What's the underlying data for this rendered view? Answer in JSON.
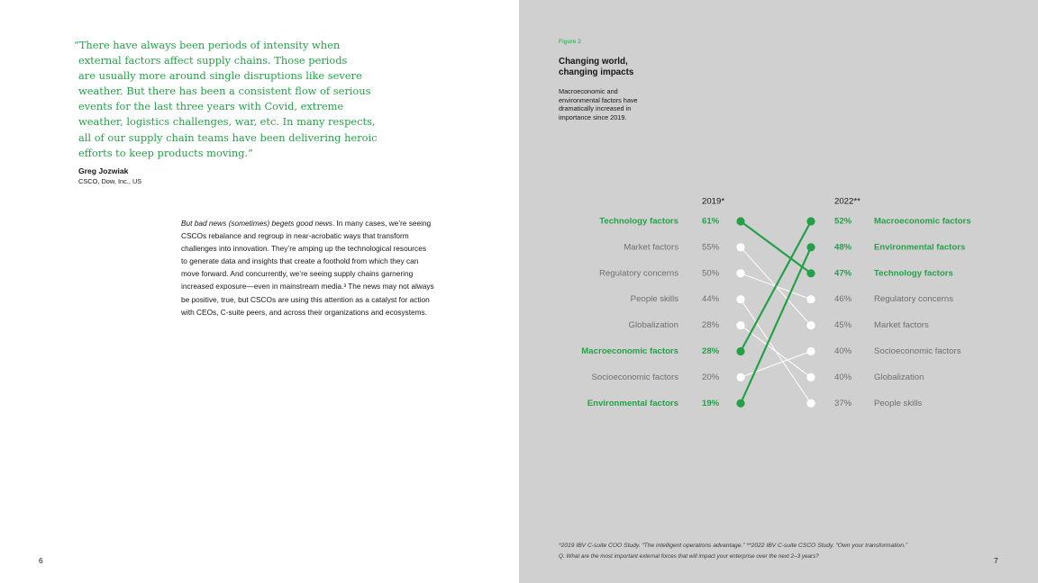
{
  "left_page": {
    "quote_lines": [
      "“There have always been periods of intensity when",
      "external factors affect supply chains. Those periods",
      "are usually more around single disruptions like severe",
      "weather. But there has been a consistent flow of serious",
      "events for the last three years with Covid, extreme",
      "weather, logistics challenges, war, etc. In many respects,",
      "all of our supply chain teams have been delivering heroic",
      "efforts to keep products moving.”"
    ],
    "author_name": "Greg Jozwiak",
    "author_role": "CSCO, Dow, Inc., US",
    "body_lead_italic": "But bad news (sometimes) begets good news",
    "body_lead_rest": ". In many cases, we’re seeing",
    "body_lines": [
      "CSCOs rebalance and regroup in near-acrobatic ways that transform",
      "challenges into innovation. They’re amping up the technological resources",
      "to generate data and insights that create a foothold from which they can",
      "move forward. And concurrently, we’re seeing supply chains garnering",
      "increased exposure—even in mainstream media.³ The news may not always",
      "be positive, true, but CSCOs are using this attention as a catalyst for action",
      "with CEOs, C-suite peers, and across their organizations and ecosystems."
    ],
    "page_number": "6"
  },
  "right_page": {
    "figure_label": "Figure 2",
    "figure_title_lines": [
      "Changing world,",
      "changing impacts"
    ],
    "figure_desc_lines": [
      "Macroeconomic and",
      "environmental factors have",
      "dramatically increased in",
      "importance since 2019."
    ],
    "footnote": "*2019 IBV C-suite COO Study. “The intelligent operations advantage.” **2022 IBV C-suite CSCO Study. “Own your transformation.”",
    "question": "Q. What are the most important external forces that will impact your enterprise over the next 2–3 years?",
    "page_number": "7"
  },
  "colors": {
    "highlight": "#24a148",
    "neutral_text": "#6f6f6f",
    "neutral_line": "#ffffff",
    "background_right": "#d0d0d0"
  },
  "chart_data": {
    "type": "slope",
    "left_header": "2019*",
    "right_header": "2022**",
    "left": [
      {
        "label": "Technology factors",
        "value": "61%"
      },
      {
        "label": "Market factors",
        "value": "55%"
      },
      {
        "label": "Regulatory concerns",
        "value": "50%"
      },
      {
        "label": "People skills",
        "value": "44%"
      },
      {
        "label": "Globalization",
        "value": "28%"
      },
      {
        "label": "Macroeconomic factors",
        "value": "28%"
      },
      {
        "label": "Socioeconomic factors",
        "value": "20%"
      },
      {
        "label": "Environmental factors",
        "value": "19%"
      }
    ],
    "right": [
      {
        "label": "Macroeconomic factors",
        "value": "52%"
      },
      {
        "label": "Environmental factors",
        "value": "48%"
      },
      {
        "label": "Technology factors",
        "value": "47%"
      },
      {
        "label": "Regulatory concerns",
        "value": "46%"
      },
      {
        "label": "Market factors",
        "value": "45%"
      },
      {
        "label": "Socioeconomic factors",
        "value": "40%"
      },
      {
        "label": "Globalization",
        "value": "40%"
      },
      {
        "label": "People skills",
        "value": "37%"
      }
    ],
    "highlighted": [
      "Technology factors",
      "Macroeconomic factors",
      "Environmental factors"
    ]
  }
}
